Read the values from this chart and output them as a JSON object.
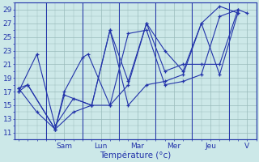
{
  "xlabel": "Température (°c)",
  "bg_color": "#cce8e8",
  "grid_color": "#99bbbb",
  "line_color": "#2233aa",
  "spine_color": "#2233aa",
  "tick_color": "#2233aa",
  "ylim": [
    10,
    30
  ],
  "yticks": [
    11,
    13,
    15,
    17,
    19,
    21,
    23,
    25,
    27,
    29
  ],
  "day_labels": [
    "Sam",
    "Lun",
    "Mar",
    "Mer",
    "Jeu",
    "V"
  ],
  "day_tick_positions": [
    2.5,
    4.5,
    6.5,
    8.5,
    10.5,
    12.5
  ],
  "day_vline_positions": [
    1.5,
    3.5,
    5.5,
    7.5,
    9.5,
    11.5
  ],
  "xlim": [
    -0.2,
    13.0
  ],
  "series": [
    {
      "x": [
        0,
        0.5,
        2,
        2.5,
        4,
        5,
        6,
        7,
        8,
        9,
        10,
        11,
        12
      ],
      "y": [
        17.5,
        18.0,
        11.5,
        16.5,
        15.0,
        26.0,
        15.0,
        18.0,
        18.5,
        19.5,
        27.0,
        29.5,
        28.5
      ]
    },
    {
      "x": [
        0,
        0.5,
        2,
        2.5,
        3.5,
        3.8,
        5,
        6,
        7,
        8,
        9,
        10,
        11,
        12,
        12.5
      ],
      "y": [
        17.0,
        18.0,
        11.5,
        17.0,
        22.0,
        22.5,
        15.0,
        25.5,
        26.0,
        18.0,
        18.5,
        19.5,
        28.0,
        29.0,
        28.5
      ]
    },
    {
      "x": [
        0,
        1,
        2,
        3,
        4,
        5,
        6,
        7,
        8,
        9,
        10,
        11,
        12
      ],
      "y": [
        17.5,
        14.0,
        11.5,
        14.0,
        15.0,
        26.0,
        18.5,
        27.0,
        23.0,
        20.0,
        27.0,
        19.5,
        28.5
      ]
    },
    {
      "x": [
        0,
        1,
        2,
        3,
        4,
        5,
        6,
        7,
        8,
        9,
        10,
        11,
        12
      ],
      "y": [
        17.0,
        22.5,
        12.0,
        16.0,
        15.0,
        15.0,
        18.0,
        27.0,
        20.0,
        21.0,
        21.0,
        21.0,
        29.0
      ]
    }
  ]
}
